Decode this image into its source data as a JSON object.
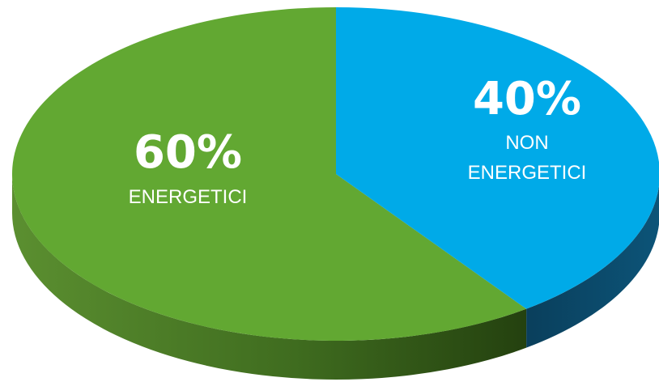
{
  "chart_data": {
    "type": "pie",
    "style": "3d",
    "series": [
      {
        "values": [
          {
            "label_pct": "60%",
            "label_lines": [
              "ENERGETICI"
            ],
            "value": 60,
            "color": "#62a832",
            "side_color": "#3f6c1f"
          },
          {
            "label_pct": "40%",
            "label_lines": [
              "NON",
              "ENERGETICI"
            ],
            "value": 40,
            "color": "#00aae8",
            "side_color": "#0c5478"
          }
        ]
      }
    ],
    "legend": "none",
    "label_color": "#ffffff"
  }
}
